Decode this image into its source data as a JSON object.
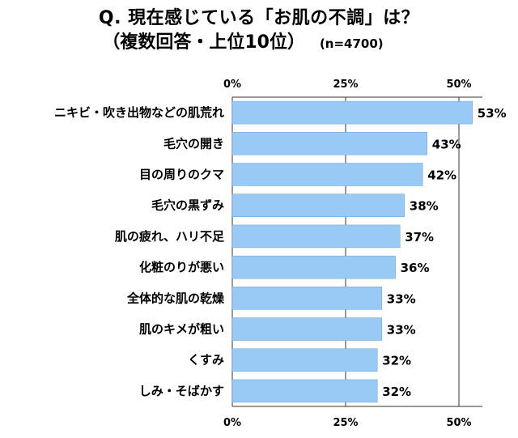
{
  "title_line1": "Q. 現在感じている「お肌の不調」は？",
  "title_line2": "（複数回答・上位10位）",
  "sample_size": "(n=4700)",
  "colors": {
    "bar": "#99c9f5",
    "bar_stroke": "#6e9fcf",
    "grid": "#333333"
  },
  "chart_data": {
    "type": "bar",
    "orientation": "horizontal",
    "categories": [
      "ニキビ・吹き出物などの肌荒れ",
      "毛穴の開き",
      "目の周りのクマ",
      "毛穴の黒ずみ",
      "肌の疲れ、ハリ不足",
      "化粧のりが悪い",
      "全体的な肌の乾燥",
      "肌のキメが粗い",
      "くすみ",
      "しみ・そばかす"
    ],
    "values": [
      53,
      43,
      42,
      38,
      37,
      36,
      33,
      33,
      32,
      32
    ],
    "value_labels": [
      "53%",
      "43%",
      "42%",
      "38%",
      "37%",
      "36%",
      "33%",
      "33%",
      "32%",
      "32%"
    ],
    "x_ticks": [
      0,
      25,
      50
    ],
    "x_tick_labels": [
      "0%",
      "25%",
      "50%"
    ],
    "xlim": [
      0,
      55
    ],
    "grid": "vertical"
  }
}
